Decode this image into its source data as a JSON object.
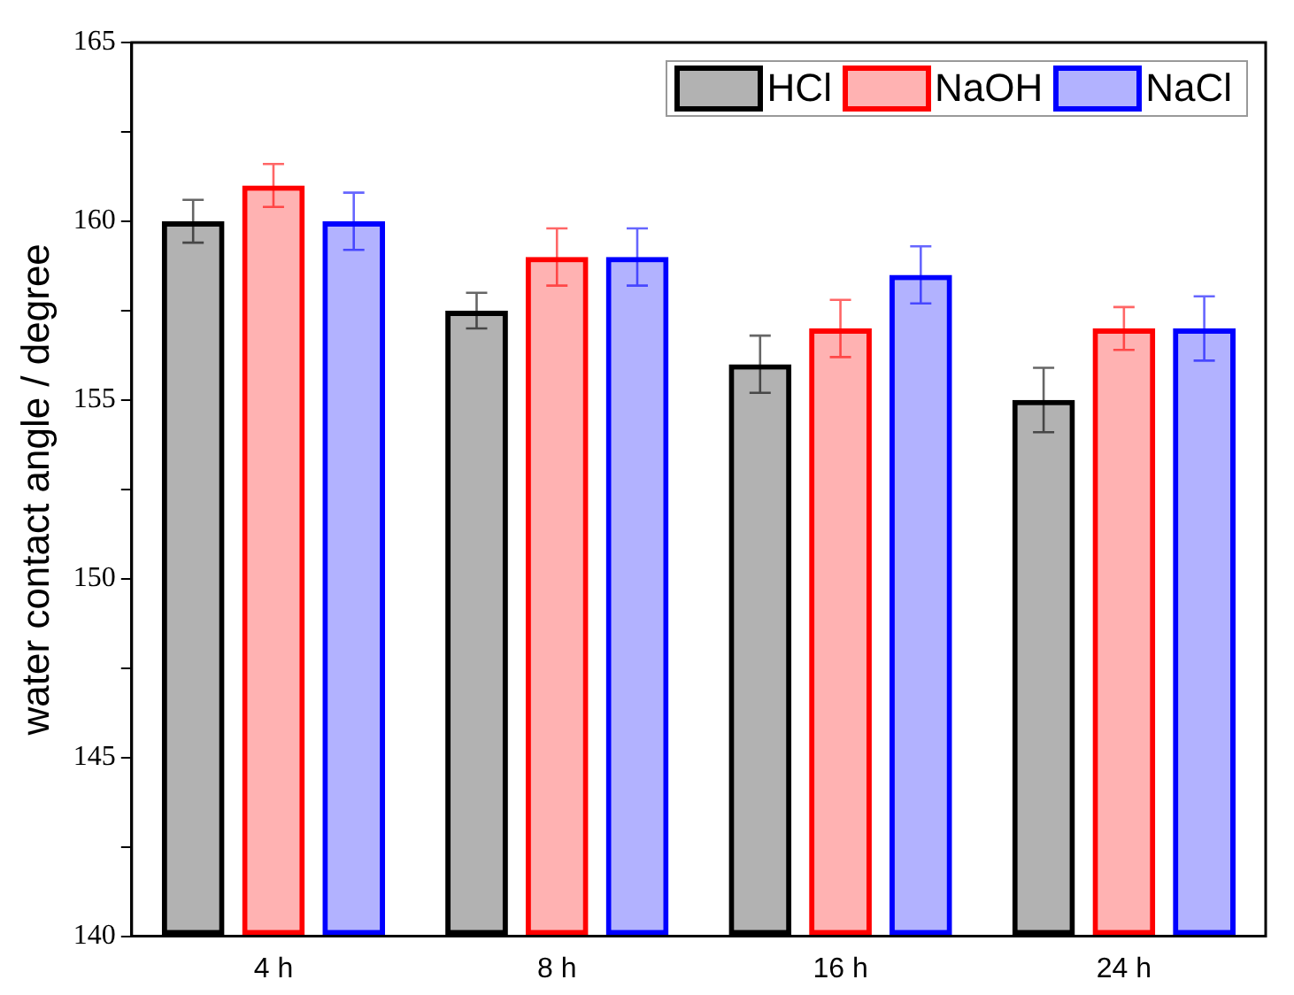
{
  "chart_data": {
    "type": "bar",
    "ylabel": "water contact angle / degree",
    "categories": [
      "4 h",
      "8 h",
      "16 h",
      "24 h"
    ],
    "series": [
      {
        "name": "HCl",
        "color": "#000000",
        "values": [
          160,
          157.5,
          156,
          155
        ],
        "errors": [
          0.6,
          0.5,
          0.8,
          0.9
        ]
      },
      {
        "name": "NaOH",
        "color": "#ff0000",
        "values": [
          161,
          159,
          157,
          157
        ],
        "errors": [
          0.6,
          0.8,
          0.8,
          0.6
        ]
      },
      {
        "name": "NaCl",
        "color": "#0000ff",
        "values": [
          160,
          159,
          158.5,
          157
        ],
        "errors": [
          0.8,
          0.8,
          0.8,
          0.9
        ]
      }
    ],
    "ylim": [
      140,
      165
    ],
    "yticks": [
      140,
      {
        "value": 142.5,
        "label": null
      },
      145,
      {
        "value": 147.5,
        "label": null
      },
      150,
      {
        "value": 152.5,
        "label": null
      },
      155,
      {
        "value": 157.5,
        "label": null
      },
      160,
      {
        "value": 162.5,
        "label": null
      },
      165
    ],
    "grid": false,
    "legend": "top right"
  }
}
